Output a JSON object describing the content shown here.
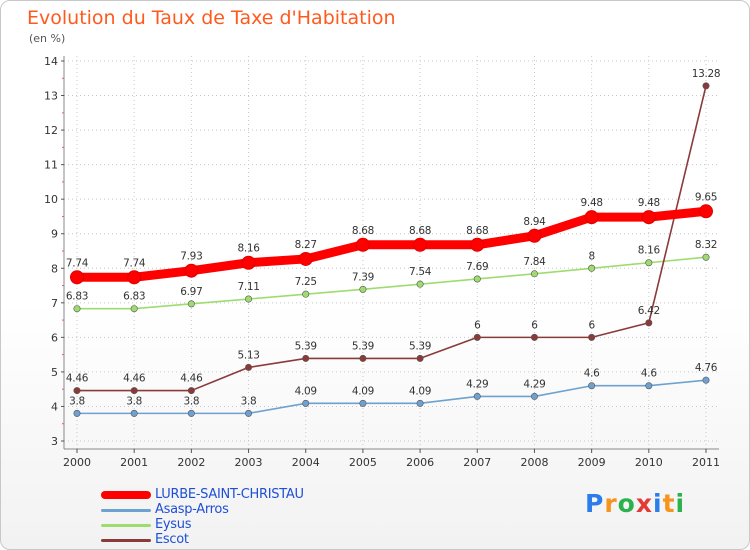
{
  "header": {
    "title": "Evolution du Taux de Taxe d'Habitation",
    "subtitle": "(en %)"
  },
  "logo": {
    "text": "Proxiti",
    "colors": [
      "#2b7de9",
      "#f7941d",
      "#2bb24c",
      "#e53935",
      "#2b7de9",
      "#f7941d",
      "#2bb24c"
    ]
  },
  "chart_data": {
    "type": "line",
    "x": [
      "2000",
      "2001",
      "2002",
      "2003",
      "2004",
      "2005",
      "2006",
      "2007",
      "2008",
      "2009",
      "2010",
      "2011"
    ],
    "ylim": [
      3,
      14
    ],
    "yticks": [
      "3",
      "4",
      "5",
      "6",
      "7",
      "8",
      "9",
      "10",
      "11",
      "12",
      "13",
      "14"
    ],
    "grid": true,
    "legend_position": "bottom-left",
    "series": [
      {
        "name": "LURBE-SAINT-CHRISTAU",
        "color": "#ff0000",
        "thick": true,
        "values": [
          7.74,
          7.74,
          7.93,
          8.16,
          8.27,
          8.68,
          8.68,
          8.68,
          8.94,
          9.48,
          9.48,
          9.65
        ],
        "labels": [
          "7.74",
          "7.74",
          "7.93",
          "8.16",
          "8.27",
          "8.68",
          "8.68",
          "8.68",
          "8.94",
          "9.48",
          "9.48",
          "9.65"
        ]
      },
      {
        "name": "Asasp-Arros",
        "color": "#6fa1d0",
        "thick": false,
        "values": [
          3.8,
          3.8,
          3.8,
          3.8,
          4.09,
          4.09,
          4.09,
          4.29,
          4.29,
          4.6,
          4.6,
          4.76
        ],
        "labels": [
          "3.8",
          "3.8",
          "3.8",
          "3.8",
          "4.09",
          "4.09",
          "4.09",
          "4.29",
          "4.29",
          "4.6",
          "4.6",
          "4.76"
        ]
      },
      {
        "name": "Eysus",
        "color": "#9edc6f",
        "thick": false,
        "values": [
          6.83,
          6.83,
          6.97,
          7.11,
          7.25,
          7.39,
          7.54,
          7.69,
          7.84,
          8,
          8.16,
          8.32
        ],
        "labels": [
          "6.83",
          "6.83",
          "6.97",
          "7.11",
          "7.25",
          "7.39",
          "7.54",
          "7.69",
          "7.84",
          "8",
          "8.16",
          "8.32"
        ]
      },
      {
        "name": "Escot",
        "color": "#8b3a3a",
        "thick": false,
        "values": [
          4.46,
          4.46,
          4.46,
          5.13,
          5.39,
          5.39,
          5.39,
          6,
          6,
          6,
          6.42,
          13.28
        ],
        "labels": [
          "4.46",
          "4.46",
          "4.46",
          "5.13",
          "5.39",
          "5.39",
          "5.39",
          "6",
          "6",
          "6",
          "6.42",
          "13.28"
        ]
      }
    ]
  }
}
